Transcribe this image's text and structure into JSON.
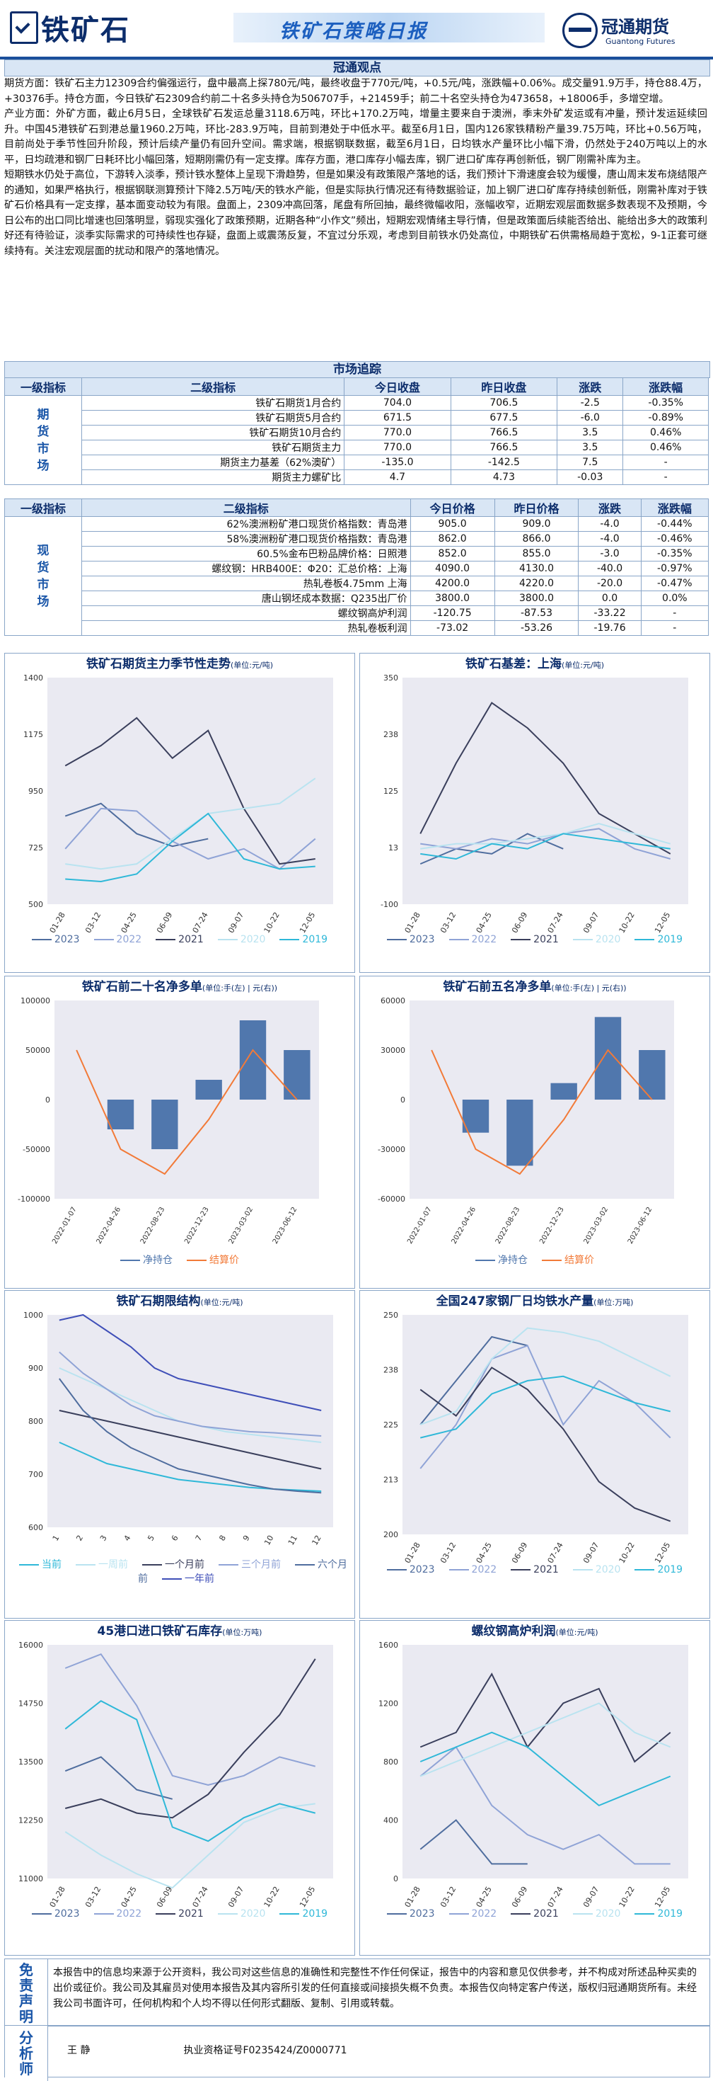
{
  "header": {
    "brand": "铁矿石",
    "title": "铁矿石策略日报",
    "company": "冠通期货",
    "company_en": "Guantong Futures"
  },
  "view": {
    "title": "冠通观点",
    "paragraphs": [
      "期货方面：铁矿石主力12309合约偏强运行，盘中最高上探780元/吨，最终收盘于770元/吨，+0.5元/吨，涨跌幅+0.06%。成交量91.9万手，持仓88.4万，+30376手。持仓方面，今日铁矿石2309合约前二十名多头持仓为506707手，+21459手；前二十名空头持仓为473658，+18006手，多增空增。",
      "产业方面：外矿方面，截止6月5日，全球铁矿石发运总量3118.6万吨，环比+170.2万吨，增量主要来自于澳洲，季末外矿发运或有冲量，预计发运延续回升。中国45港铁矿石到港总量1960.2万吨，环比-283.9万吨，目前到港处于中低水平。截至6月1日，国内126家铁精粉产量39.75万吨，环比+0.56万吨，目前尚处于季节性回升阶段，预计后续产量仍有回升空间。需求端，根据钢联数据，截至6月1日，日均铁水产量环比小幅下滑，仍然处于240万吨以上的水平，日均疏港和钢厂日耗环比小幅回落，短期刚需仍有一定支撑。库存方面，港口库存小幅去库，钢厂进口矿库存再创新低，钢厂刚需补库为主。",
      "短期铁水仍处于高位，下游转入淡季，预计铁水整体上呈现下滑趋势，但是如果没有政策限产落地的话，我们预计下滑速度会较为缓慢，唐山周末发布烧结限产的通知，如果严格执行，根据钢联测算预计下降2.5万吨/天的铁水产能，但是实际执行情况还有待数据验证，加上钢厂进口矿库存持续创新低，刚需补库对于铁矿石价格具有一定支撑，基本面变动较为有限。盘面上，2309冲高回落，尾盘有所回抽，最终微幅收阳，涨幅收窄，近期宏观层面数据多数表现不及预期，今日公布的出口同比增速也回落明显，弱现实强化了政策预期，近期各种“小作文”频出，短期宏观情绪主导行情，但是政策面后续能否给出、能给出多大的政策利好还有待验证，淡季实际需求的可持续性也存疑，盘面上或震荡反复，不宜过分乐观，考虑到目前铁水仍处高位，中期铁矿石供需格局趋于宽松，9-1正套可继续持有。关注宏观层面的扰动和限产的落地情况。"
    ]
  },
  "market": {
    "title": "市场追踪",
    "futures_header": [
      "一级指标",
      "二级指标",
      "今日收盘",
      "昨日收盘",
      "涨跌",
      "涨跌幅"
    ],
    "futures_side": "期货市场",
    "futures_rows": [
      [
        "铁矿石期货1月合约",
        "704.0",
        "706.5",
        "-2.5",
        "-0.35%"
      ],
      [
        "铁矿石期货5月合约",
        "671.5",
        "677.5",
        "-6.0",
        "-0.89%"
      ],
      [
        "铁矿石期货10月合约",
        "770.0",
        "766.5",
        "3.5",
        "0.46%"
      ],
      [
        "铁矿石期货主力",
        "770.0",
        "766.5",
        "3.5",
        "0.46%"
      ],
      [
        "期货主力基差（62%澳矿）",
        "-135.0",
        "-142.5",
        "7.5",
        "-"
      ],
      [
        "期货主力螺矿比",
        "4.7",
        "4.73",
        "-0.03",
        "-"
      ]
    ],
    "spot_header": [
      "一级指标",
      "二级指标",
      "今日价格",
      "昨日价格",
      "涨跌",
      "涨跌幅"
    ],
    "spot_side": "现货市场",
    "spot_rows": [
      [
        "62%澳洲粉矿港口现货价格指数：青岛港",
        "905.0",
        "909.0",
        "-4.0",
        "-0.44%"
      ],
      [
        "58%澳洲粉矿港口现货价格指数：青岛港",
        "862.0",
        "866.0",
        "-4.0",
        "-0.46%"
      ],
      [
        "60.5%金布巴粉品牌价格：日照港",
        "852.0",
        "855.0",
        "-3.0",
        "-0.35%"
      ],
      [
        "螺纹钢：HRB400E：Φ20：汇总价格：上海",
        "4090.0",
        "4130.0",
        "-40.0",
        "-0.97%"
      ],
      [
        "热轧卷板4.75mm 上海",
        "4200.0",
        "4220.0",
        "-20.0",
        "-0.47%"
      ],
      [
        "唐山钢坯成本数据：Q235出厂价",
        "3800.0",
        "3800.0",
        "0.0",
        "0.0%"
      ],
      [
        "螺纹钢高炉利润",
        "-120.75",
        "-87.53",
        "-33.22",
        "-"
      ],
      [
        "热轧卷板利润",
        "-73.02",
        "-53.26",
        "-19.76",
        "-"
      ]
    ]
  },
  "charts": {
    "c1": {
      "title": "铁矿石期货主力季节性走势",
      "unit": "(单位:元/吨)"
    },
    "c2": {
      "title": "铁矿石基差：上海",
      "unit": "(单位:元/吨)"
    },
    "c3": {
      "title": "铁矿石前二十名净多单",
      "unit": "(单位:手(左) | 元(右))"
    },
    "c4": {
      "title": "铁矿石前五名净多单",
      "unit": "(单位:手(左) | 元(右))"
    },
    "c5": {
      "title": "铁矿石期限结构",
      "unit": "(单位:元/吨)"
    },
    "c6": {
      "title": "全国247家钢厂日均铁水产量",
      "unit": "(单位:万吨)"
    },
    "c7": {
      "title": "45港口进口铁矿石库存",
      "unit": "(单位:万吨)"
    },
    "c8": {
      "title": "螺纹钢高炉利润",
      "unit": "(单位:元/吨)"
    }
  },
  "legends": {
    "season": [
      "2023",
      "2022",
      "2021",
      "2020",
      "2019"
    ],
    "net": [
      "净持仓",
      "结算价"
    ],
    "term": [
      "当前",
      "一周前",
      "一个月前",
      "三个月前",
      "六个月前",
      "一年前"
    ]
  },
  "colors": {
    "c2023": "#4f6d9e",
    "c2022": "#8fa3d6",
    "c2021": "#3a3f5c",
    "c2020": "#b9e3f0",
    "c2019": "#2fb8d8",
    "net": "#5077ad",
    "settle": "#f27a38"
  },
  "chart_data": [
    {
      "type": "line",
      "title": "铁矿石期货主力季节性走势",
      "x": [
        "01-28",
        "03-12",
        "04-25",
        "06-09",
        "07-24",
        "09-07",
        "10-22",
        "12-05"
      ],
      "ylim": [
        500,
        1400
      ],
      "series": [
        {
          "name": "2023",
          "values": [
            850,
            900,
            780,
            730,
            760,
            null,
            null,
            null
          ]
        },
        {
          "name": "2022",
          "values": [
            720,
            880,
            870,
            750,
            680,
            720,
            640,
            760
          ]
        },
        {
          "name": "2021",
          "values": [
            1050,
            1130,
            1240,
            1080,
            1190,
            880,
            660,
            680
          ]
        },
        {
          "name": "2020",
          "values": [
            660,
            640,
            660,
            760,
            860,
            880,
            900,
            1000
          ]
        },
        {
          "name": "2019",
          "values": [
            600,
            590,
            620,
            750,
            860,
            680,
            640,
            650
          ]
        }
      ]
    },
    {
      "type": "line",
      "title": "铁矿石基差：上海",
      "x": [
        "01-28",
        "03-12",
        "04-25",
        "06-09",
        "07-24",
        "09-07",
        "10-22",
        "12-05"
      ],
      "ylim": [
        -100,
        350
      ],
      "series": [
        {
          "name": "2023",
          "values": [
            -20,
            10,
            0,
            40,
            10,
            null,
            null,
            null
          ]
        },
        {
          "name": "2022",
          "values": [
            20,
            10,
            30,
            20,
            40,
            50,
            10,
            -10
          ]
        },
        {
          "name": "2021",
          "values": [
            40,
            180,
            300,
            250,
            180,
            80,
            40,
            0
          ]
        },
        {
          "name": "2020",
          "values": [
            10,
            20,
            20,
            30,
            40,
            60,
            40,
            20
          ]
        },
        {
          "name": "2019",
          "values": [
            0,
            -10,
            20,
            10,
            40,
            30,
            20,
            10
          ]
        }
      ]
    },
    {
      "type": "bar",
      "title": "铁矿石前二十名净多单",
      "x": [
        "2022-01-07",
        "2022-04-26",
        "2022-08-23",
        "2022-12-23",
        "2023-03-02",
        "2023-06-12"
      ],
      "ylim": [
        -100000,
        100000
      ],
      "series": [
        {
          "name": "净持仓",
          "values": [
            0,
            -30000,
            -50000,
            20000,
            80000,
            50000
          ]
        },
        {
          "name": "结算价",
          "values": [
            900,
            700,
            650,
            760,
            900,
            800
          ]
        }
      ]
    },
    {
      "type": "bar",
      "title": "铁矿石前五名净多单",
      "x": [
        "2022-01-07",
        "2022-04-26",
        "2022-08-23",
        "2022-12-23",
        "2023-03-02",
        "2023-06-12"
      ],
      "ylim": [
        -60000,
        60000
      ],
      "series": [
        {
          "name": "净持仓",
          "values": [
            0,
            -20000,
            -40000,
            10000,
            50000,
            30000
          ]
        },
        {
          "name": "结算价",
          "values": [
            900,
            700,
            650,
            760,
            900,
            800
          ]
        }
      ]
    },
    {
      "type": "line",
      "title": "铁矿石期限结构",
      "x": [
        "1",
        "2",
        "3",
        "4",
        "5",
        "6",
        "7",
        "8",
        "9",
        "10",
        "11",
        "12"
      ],
      "ylim": [
        600,
        1000
      ],
      "series": [
        {
          "name": "当前",
          "values": [
            760,
            740,
            720,
            710,
            700,
            690,
            685,
            680,
            675,
            672,
            670,
            668
          ]
        },
        {
          "name": "一周前",
          "values": [
            900,
            880,
            860,
            840,
            820,
            800,
            790,
            780,
            775,
            770,
            765,
            760
          ]
        },
        {
          "name": "一个月前",
          "values": [
            820,
            810,
            800,
            790,
            780,
            770,
            760,
            750,
            740,
            730,
            720,
            710
          ]
        },
        {
          "name": "三个月前",
          "values": [
            930,
            890,
            860,
            830,
            810,
            800,
            790,
            785,
            780,
            778,
            775,
            772
          ]
        },
        {
          "name": "六个月前",
          "values": [
            880,
            820,
            780,
            750,
            730,
            710,
            700,
            690,
            680,
            672,
            668,
            665
          ]
        },
        {
          "name": "一年前",
          "values": [
            990,
            1000,
            970,
            940,
            900,
            880,
            870,
            860,
            850,
            840,
            830,
            820
          ]
        }
      ]
    },
    {
      "type": "line",
      "title": "全国247家钢厂日均铁水产量",
      "x": [
        "01-28",
        "03-12",
        "04-25",
        "06-09",
        "07-24",
        "09-07",
        "10-22",
        "12-05"
      ],
      "ylim": [
        200,
        250
      ],
      "series": [
        {
          "name": "2023",
          "values": [
            225,
            235,
            245,
            243,
            null,
            null,
            null,
            null
          ]
        },
        {
          "name": "2022",
          "values": [
            215,
            225,
            240,
            243,
            225,
            235,
            230,
            222
          ]
        },
        {
          "name": "2021",
          "values": [
            233,
            227,
            238,
            233,
            224,
            212,
            206,
            203
          ]
        },
        {
          "name": "2020",
          "values": [
            225,
            228,
            240,
            247,
            246,
            244,
            240,
            236
          ]
        },
        {
          "name": "2019",
          "values": [
            222,
            224,
            232,
            235,
            236,
            233,
            230,
            228
          ]
        }
      ]
    },
    {
      "type": "line",
      "title": "45港口进口铁矿石库存",
      "x": [
        "01-28",
        "03-12",
        "04-25",
        "06-09",
        "07-24",
        "09-07",
        "10-22",
        "12-05"
      ],
      "ylim": [
        11000,
        16000
      ],
      "series": [
        {
          "name": "2023",
          "values": [
            13300,
            13600,
            12900,
            12700,
            null,
            null,
            null,
            null
          ]
        },
        {
          "name": "2022",
          "values": [
            15500,
            15800,
            14700,
            13200,
            13000,
            13200,
            13600,
            13400
          ]
        },
        {
          "name": "2021",
          "values": [
            12500,
            12700,
            12400,
            12300,
            12800,
            13700,
            14500,
            15700
          ]
        },
        {
          "name": "2020",
          "values": [
            12000,
            11500,
            11100,
            10800,
            11500,
            12200,
            12500,
            12600
          ]
        },
        {
          "name": "2019",
          "values": [
            14200,
            14800,
            14400,
            12100,
            11800,
            12300,
            12600,
            12400
          ]
        }
      ]
    },
    {
      "type": "line",
      "title": "螺纹钢高炉利润",
      "x": [
        "01-28",
        "03-12",
        "04-25",
        "06-09",
        "07-24",
        "09-07",
        "10-22",
        "12-05"
      ],
      "ylim": [
        0,
        1600
      ],
      "series": [
        {
          "name": "2023",
          "values": [
            200,
            400,
            100,
            100,
            null,
            null,
            null,
            null
          ]
        },
        {
          "name": "2022",
          "values": [
            700,
            900,
            500,
            300,
            200,
            300,
            100,
            100
          ]
        },
        {
          "name": "2021",
          "values": [
            900,
            1000,
            1400,
            900,
            1200,
            1300,
            800,
            1000
          ]
        },
        {
          "name": "2020",
          "values": [
            700,
            800,
            900,
            1000,
            1100,
            1200,
            1000,
            900
          ]
        },
        {
          "name": "2019",
          "values": [
            800,
            900,
            1000,
            900,
            700,
            500,
            600,
            700
          ]
        }
      ]
    }
  ],
  "footer": {
    "disclaimer_label": "免责声明",
    "disclaimer": "本报告中的信息均来源于公开资料，我公司对这些信息的准确性和完整性不作任何保证，报告中的内容和意见仅供参考，并不构成对所述品种买卖的出价或征价。我公司及其雇员对使用本报告及其内容所引发的任何直接或间接损失概不负责。本报告仅向特定客户传送，版权归冠通期货所有。未经我公司书面许可，任何机构和个人均不得以任何形式翻版、复制、引用或转载。",
    "analyst_label": "分析师",
    "analyst": "王  静",
    "license": "执业资格证号F0235424/Z0000771"
  }
}
